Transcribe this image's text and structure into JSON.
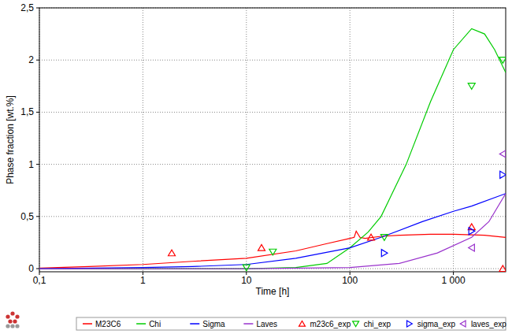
{
  "chart_data": {
    "type": "line",
    "x_label": "Time [h]",
    "y_label": "Phase fraction [wt.%]",
    "log": "x",
    "grid": true,
    "legend": "bottom",
    "xlim": [
      0.1,
      3200
    ],
    "ylim": [
      -0.03,
      2.5
    ],
    "xticks": [
      {
        "value": 0.1,
        "label": "0,1"
      },
      1,
      10,
      100,
      {
        "value": 1000,
        "label": "1 000"
      }
    ],
    "yticks": [
      0,
      {
        "value": 0.5,
        "label": "0,5"
      },
      1,
      {
        "value": 1.5,
        "label": "1,5"
      },
      2,
      {
        "value": 2.5,
        "label": "2,5"
      }
    ],
    "series": [
      {
        "name": "M23C6",
        "color": "#ff0000",
        "type": "line",
        "line_style": "solid",
        "x": [
          0.1,
          0.3,
          1,
          3,
          10,
          30,
          60,
          100,
          110,
          115,
          125,
          140,
          200,
          300,
          600,
          1000,
          2000,
          3200
        ],
        "values": [
          0.005,
          0.02,
          0.04,
          0.07,
          0.1,
          0.17,
          0.24,
          0.29,
          0.3,
          0.36,
          0.3,
          0.29,
          0.31,
          0.32,
          0.33,
          0.33,
          0.32,
          0.3
        ]
      },
      {
        "name": "Chi",
        "color": "#00cc00",
        "type": "line",
        "line_style": "solid",
        "x": [
          0.1,
          1,
          10,
          30,
          60,
          100,
          150,
          200,
          350,
          600,
          1000,
          1500,
          2000,
          2500,
          3200
        ],
        "values": [
          0,
          0,
          0,
          0.01,
          0.05,
          0.2,
          0.35,
          0.5,
          1.0,
          1.6,
          2.1,
          2.3,
          2.25,
          2.1,
          1.88
        ]
      },
      {
        "name": "Sigma",
        "color": "#0000ff",
        "type": "line",
        "line_style": "solid",
        "x": [
          0.1,
          1,
          3,
          10,
          30,
          100,
          200,
          500,
          1000,
          1500,
          3200
        ],
        "values": [
          0,
          0.01,
          0.02,
          0.04,
          0.1,
          0.2,
          0.3,
          0.45,
          0.55,
          0.6,
          0.72
        ]
      },
      {
        "name": "Laves",
        "color": "#9932cc",
        "type": "line",
        "line_style": "solid",
        "x": [
          0.1,
          1,
          10,
          100,
          300,
          700,
          1500,
          2200,
          3200
        ],
        "values": [
          0,
          0,
          0,
          0.01,
          0.05,
          0.15,
          0.3,
          0.45,
          0.72
        ]
      },
      {
        "name": "m23c6_exp",
        "color": "#ff0000",
        "type": "scatter",
        "marker": "triangle-up",
        "x": [
          1.9,
          14,
          160,
          1500,
          3000
        ],
        "values": [
          0.15,
          0.2,
          0.3,
          0.4,
          0.0
        ]
      },
      {
        "name": "chi_exp",
        "color": "#00cc00",
        "type": "scatter",
        "marker": "triangle-down",
        "x": [
          10,
          18,
          215,
          1500,
          3000
        ],
        "values": [
          0.01,
          0.16,
          0.3,
          1.75,
          2.0
        ]
      },
      {
        "name": "sigma_exp",
        "color": "#0000ff",
        "type": "scatter",
        "marker": "triangle-right",
        "x": [
          215,
          1500,
          3000
        ],
        "values": [
          0.15,
          0.36,
          0.9
        ]
      },
      {
        "name": "laves_exp",
        "color": "#9932cc",
        "type": "scatter",
        "marker": "triangle-left",
        "x": [
          1500,
          3000
        ],
        "values": [
          0.2,
          1.1
        ]
      }
    ]
  }
}
